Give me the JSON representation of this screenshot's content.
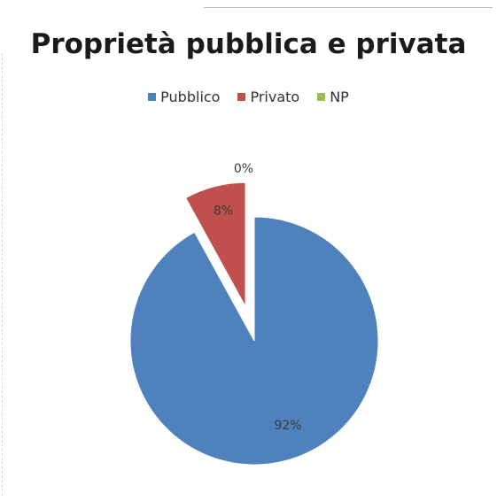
{
  "chart_data": {
    "type": "pie",
    "title": "Proprietà pubblica e privata",
    "categories": [
      "Pubblico",
      "Privato",
      "NP"
    ],
    "values": [
      92,
      8,
      0
    ],
    "value_labels": [
      "92%",
      "8%",
      "0%"
    ],
    "colors": [
      "#4F81BD",
      "#C0504D",
      "#9BBB59"
    ],
    "exploded": [
      false,
      true,
      false
    ],
    "legend_position": "top"
  }
}
